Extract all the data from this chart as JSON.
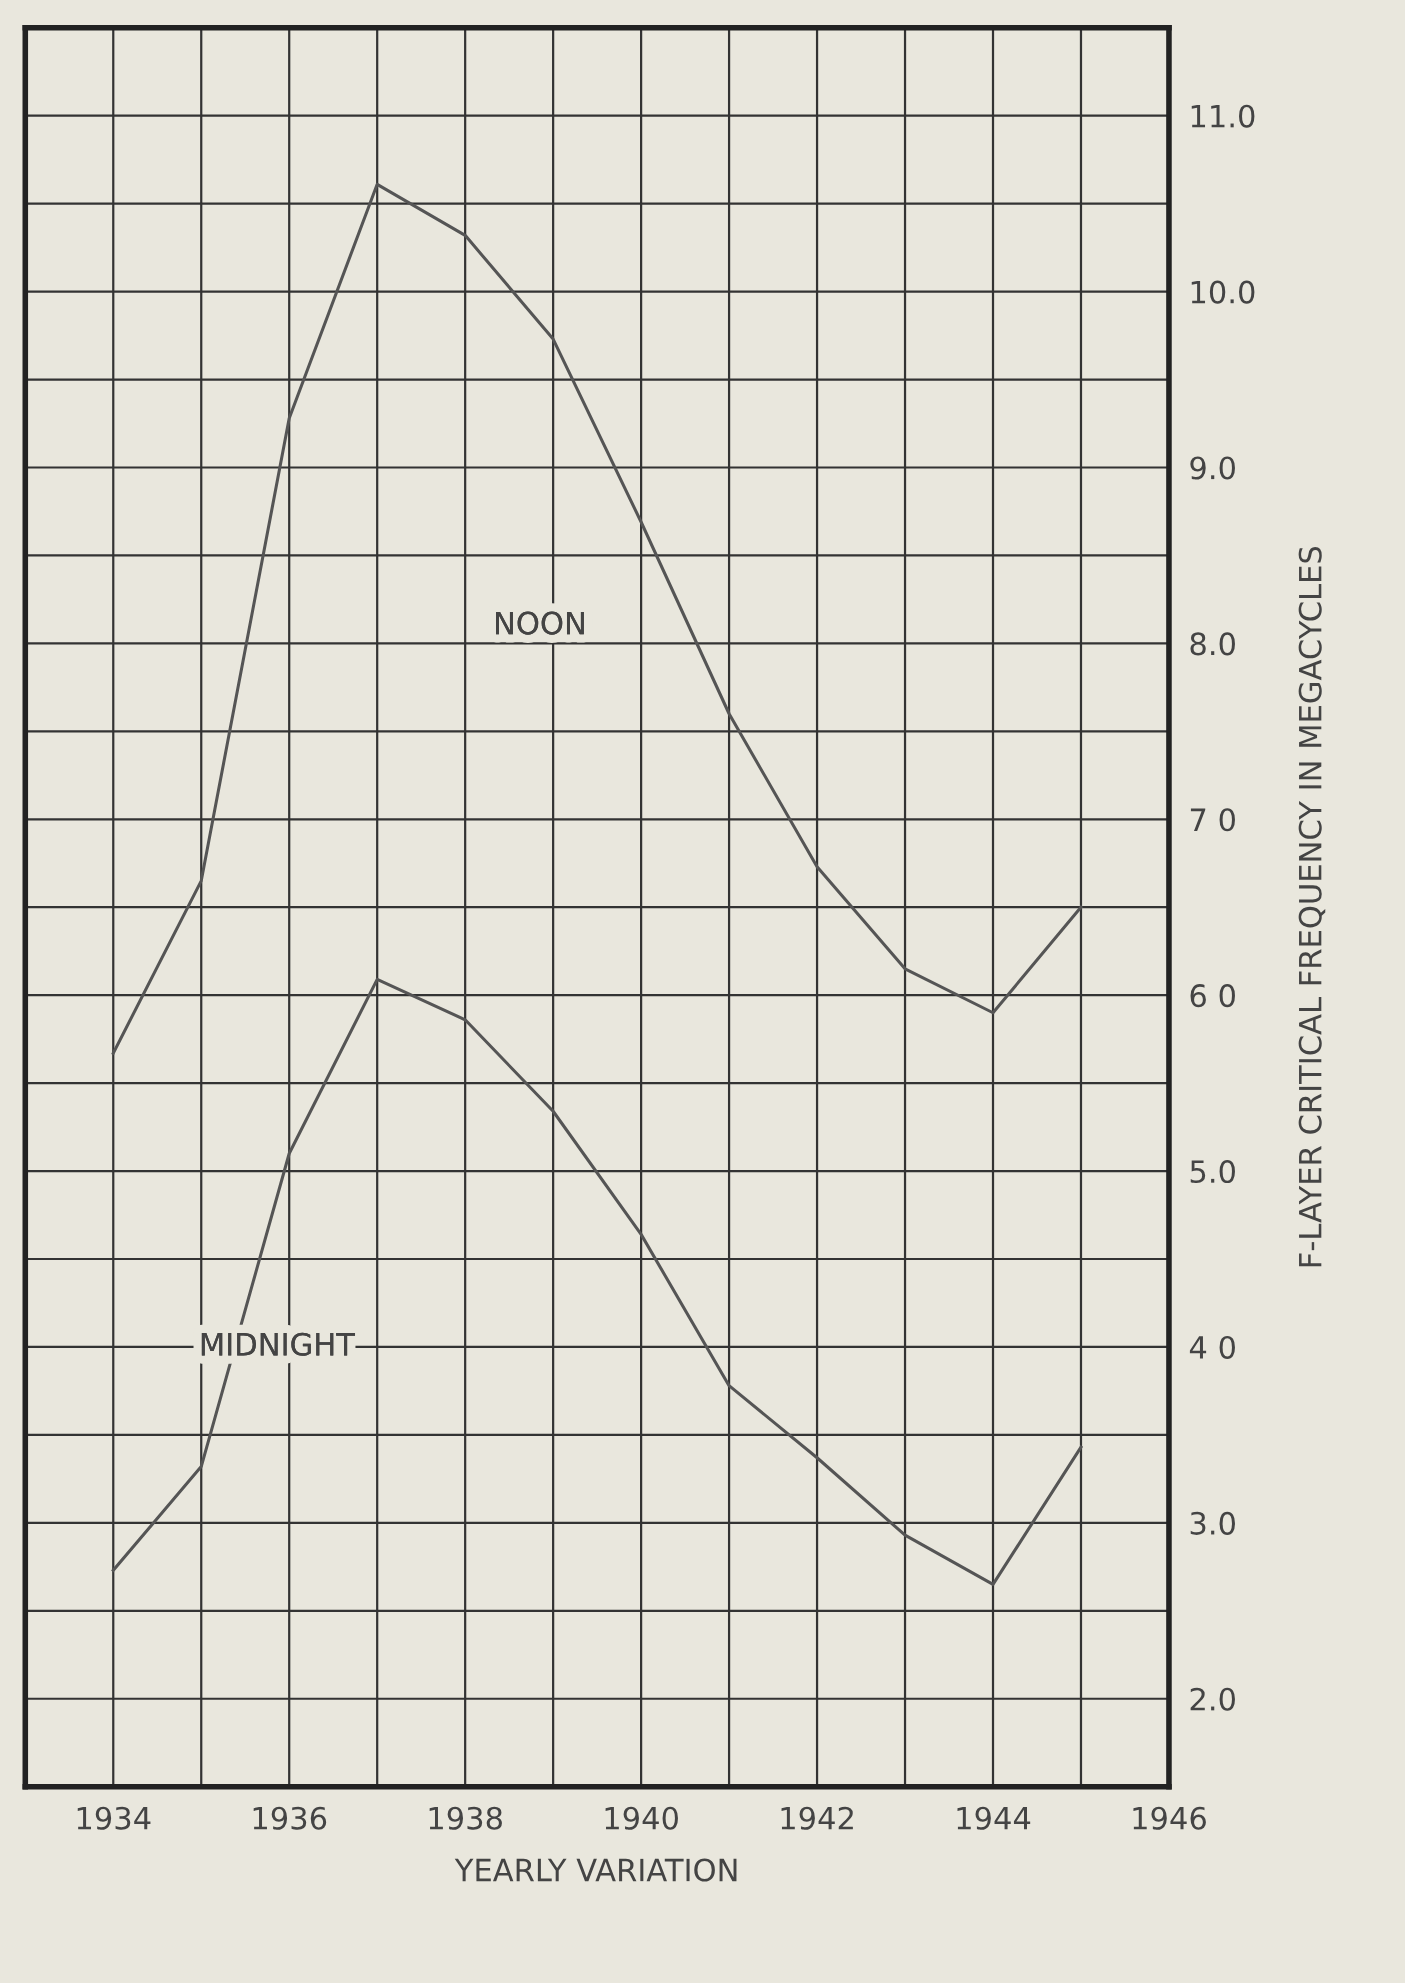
{
  "chart_data": {
    "type": "line",
    "xlabel": "YEARLY VARIATION",
    "ylabel": "F-LAYER CRITICAL FREQUENCY IN MEGACYCLES",
    "x": [
      1934,
      1935,
      1936,
      1937,
      1938,
      1939,
      1940,
      1941,
      1942,
      1943,
      1944,
      1945
    ],
    "series": [
      {
        "name": "NOON",
        "color": "#555555",
        "values": [
          5.67,
          6.65,
          9.28,
          10.61,
          10.32,
          9.73,
          8.69,
          7.6,
          6.73,
          6.15,
          5.9,
          6.5
        ]
      },
      {
        "name": "MIDNIGHT",
        "color": "#555555",
        "values": [
          2.73,
          3.32,
          5.1,
          6.09,
          5.86,
          5.34,
          4.64,
          3.78,
          3.37,
          2.93,
          2.65,
          3.43
        ]
      }
    ],
    "xlim": [
      1933,
      1946
    ],
    "xticks": [
      1934,
      1936,
      1938,
      1940,
      1942,
      1944,
      1946
    ],
    "ylim": [
      1.5,
      11.5
    ],
    "yticks": [
      {
        "value": 2,
        "label": "2.0"
      },
      {
        "value": 3,
        "label": "3.0"
      },
      {
        "value": 4,
        "label": "4 0"
      },
      {
        "value": 5,
        "label": "5.0"
      },
      {
        "value": 6,
        "label": "6 0"
      },
      {
        "value": 7,
        "label": "7 0"
      },
      {
        "value": 8,
        "label": "8.0"
      },
      {
        "value": 9,
        "label": "9.0"
      },
      {
        "value": 10,
        "label": "10.0"
      },
      {
        "value": 11,
        "label": "11.0"
      }
    ],
    "grid": true,
    "marker": "none",
    "line_style": "solid",
    "legend": false
  }
}
